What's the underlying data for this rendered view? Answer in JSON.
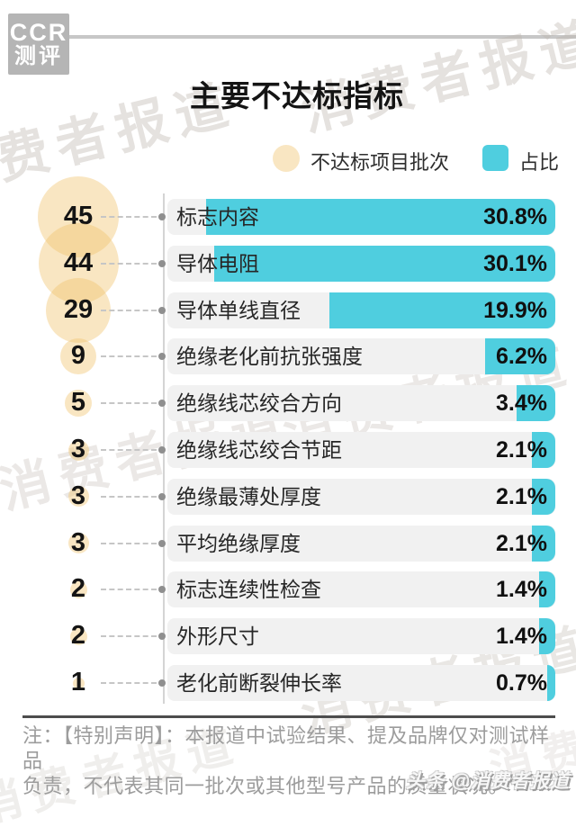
{
  "logo": {
    "line1": "CCR",
    "line2": "测评"
  },
  "title": "主要不达标指标",
  "legend": {
    "batch_label": "不达标项目批次",
    "pct_label": "占比"
  },
  "chart_data": {
    "type": "bar",
    "orientation": "horizontal",
    "title": "主要不达标指标",
    "categories": [
      "标志内容",
      "导体电阻",
      "导体单线直径",
      "绝缘老化前抗张强度",
      "绝缘线芯绞合方向",
      "绝缘线芯绞合节距",
      "绝缘最薄处厚度",
      "平均绝缘厚度",
      "标志连续性检查",
      "外形尺寸",
      "老化前断裂伸长率"
    ],
    "series": [
      {
        "name": "不达标项目批次",
        "values": [
          45,
          44,
          29,
          9,
          5,
          3,
          3,
          3,
          2,
          2,
          1
        ]
      },
      {
        "name": "占比",
        "values": [
          30.8,
          30.1,
          19.9,
          6.2,
          3.4,
          2.1,
          2.1,
          2.1,
          1.4,
          1.4,
          0.7
        ],
        "unit": "%"
      }
    ],
    "xlim": [
      0,
      34.3
    ],
    "grid": false,
    "legend_position": "top",
    "bar_anchor": "right"
  },
  "watermark": {
    "text": "消费者报道"
  },
  "note": {
    "line1": "注：【特别声明】：本报道中试验结果、提及品牌仅对测试样品",
    "line2": "负责，不代表其同一批次或其他型号产品的质量状况。"
  },
  "attribution": "头条 @消费者报道",
  "colors": {
    "bar": "#4FCEDF",
    "track": "#F1F1F1",
    "circle": "rgba(240,195,110,0.42)",
    "logo_bg": "#B5B5B5",
    "header_line": "#C7C7C7",
    "rule": "#4D4D4D",
    "note_text": "#9C9C9C"
  }
}
